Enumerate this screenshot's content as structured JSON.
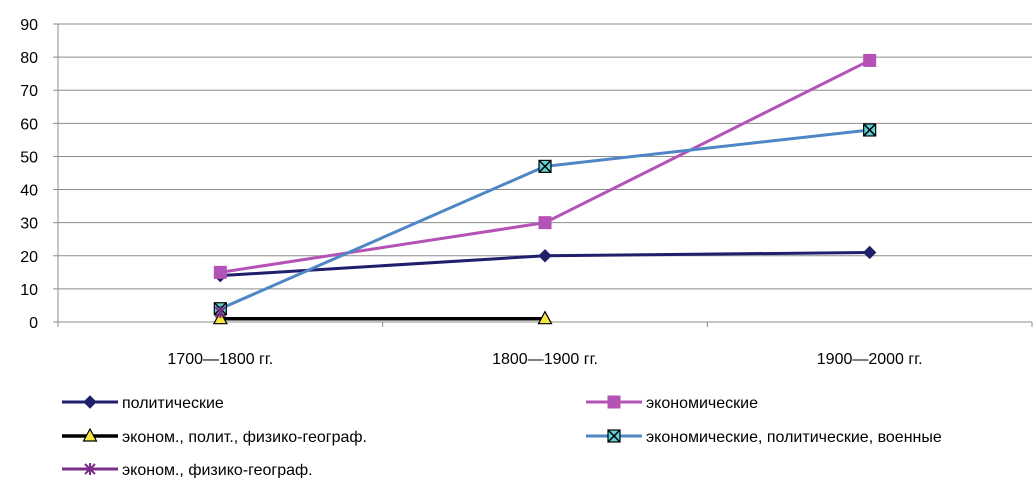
{
  "chart_data": {
    "type": "line",
    "categories": [
      "1700—1800 гг.",
      "1800—1900 гг.",
      "1900—2000 гг."
    ],
    "ylim": [
      0,
      90
    ],
    "yticks": [
      0,
      10,
      20,
      30,
      40,
      50,
      60,
      70,
      80,
      90
    ],
    "grid": true,
    "legend_position": "bottom",
    "series": [
      {
        "name": "политические",
        "values": [
          14,
          20,
          21
        ],
        "color": "#1F1F6B",
        "marker": "diamond"
      },
      {
        "name": "экономические",
        "values": [
          15,
          30,
          79
        ],
        "color": "#B552B5",
        "marker": "square"
      },
      {
        "name": "эконом., полит., физико-географ.",
        "values": [
          1,
          1,
          null
        ],
        "color": "#000000",
        "marker": "triangle",
        "marker_fill": "#F5E642"
      },
      {
        "name": "экономические, политические, военные",
        "values": [
          4,
          47,
          58
        ],
        "color": "#4F86C6",
        "marker": "square-x",
        "marker_fill": "#5FD3D3"
      },
      {
        "name": "эконом., физико-географ.",
        "values": [
          3,
          null,
          null
        ],
        "color": "#7A2E8A",
        "marker": "star"
      }
    ]
  }
}
